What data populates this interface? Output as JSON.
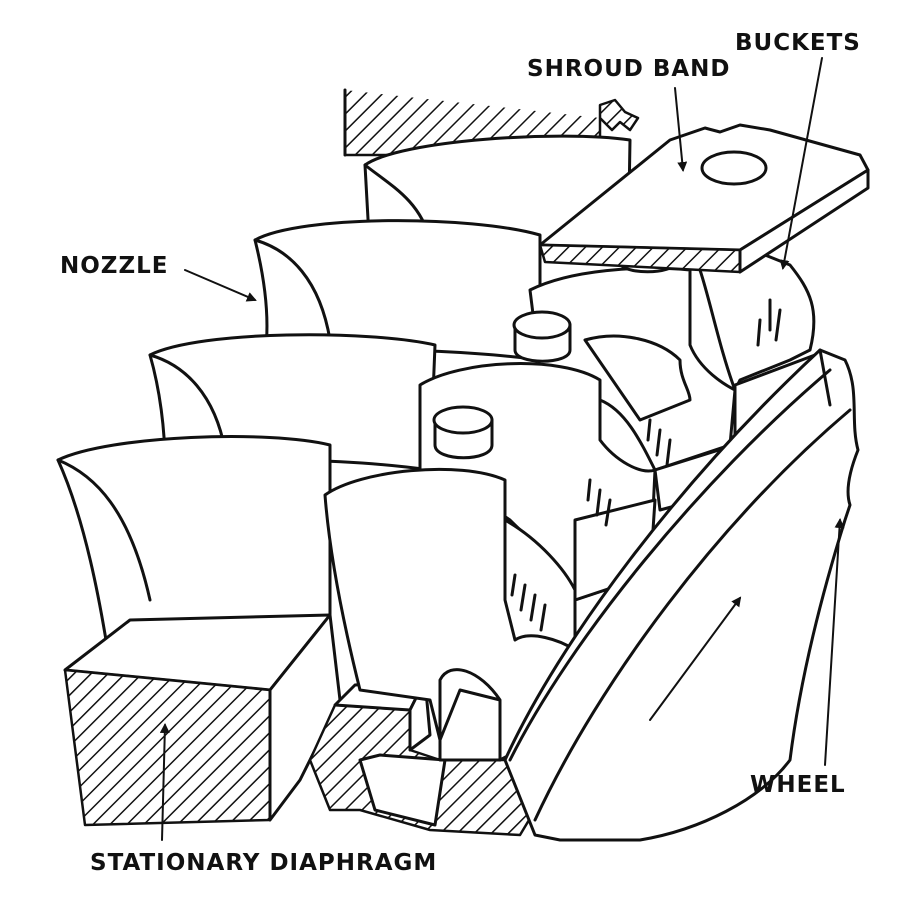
{
  "labels": {
    "buckets": "BUCKETS",
    "shroud_band": "SHROUD BAND",
    "nozzle": "NOZZLE",
    "wheel": "WHEEL",
    "stationary_diaphragm": "STATIONARY DIAPHRAGM"
  },
  "colors": {
    "ink": "#111111",
    "paper": "#ffffff"
  }
}
